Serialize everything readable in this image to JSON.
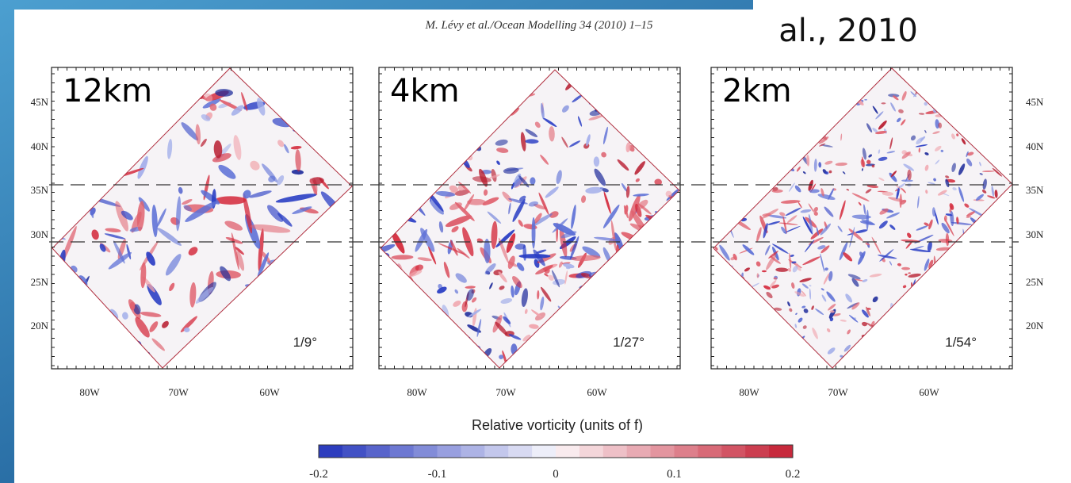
{
  "header": {
    "citation": "M. Lévy et al./Ocean Modelling 34 (2010) 1–15",
    "title_fragment": "al., 2010"
  },
  "panels": [
    {
      "label": "12km",
      "resolution": "1/9°"
    },
    {
      "label": "4km",
      "resolution": "1/27°"
    },
    {
      "label": "2km",
      "resolution": "1/54°"
    }
  ],
  "latitude_labels": [
    "45N",
    "40N",
    "35N",
    "30N",
    "25N",
    "20N"
  ],
  "longitude_labels": [
    "80W",
    "70W",
    "60W"
  ],
  "colorbar": {
    "label": "Relative vorticity (units of f)",
    "ticks": [
      "-0.2",
      "-0.1",
      "0",
      "0.1",
      "0.2"
    ]
  }
}
